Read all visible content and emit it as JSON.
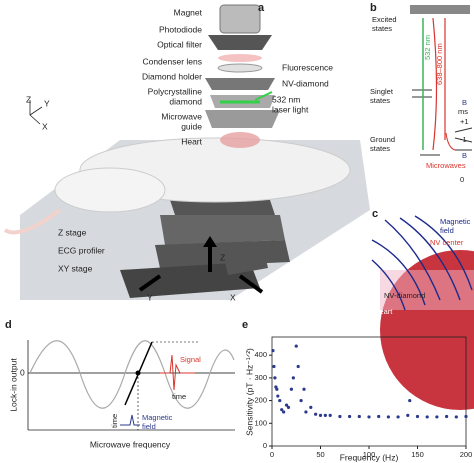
{
  "figure": {
    "panel_labels": [
      "a",
      "b",
      "c",
      "d",
      "e"
    ],
    "a": {
      "left_labels": [
        "Magnet",
        "Photodiode",
        "Optical filter",
        "Condenser lens",
        "Diamond holder",
        "Polycrystalline",
        "diamond",
        "Microwave",
        "guide",
        "Heart"
      ],
      "right_labels": [
        "Fluorescence",
        "NV-diamond",
        "532 nm",
        "laser light"
      ],
      "stage_labels": [
        "Z stage",
        "ECG profiler",
        "XY stage"
      ],
      "axes": [
        "Z",
        "Y",
        "X"
      ],
      "arrows": [
        "Z",
        "Y",
        "X"
      ]
    },
    "b": {
      "states": [
        "Excited",
        "states",
        "Singlet",
        "states",
        "Ground",
        "states"
      ],
      "excitation": "532 nm",
      "emission": "638–800 nm",
      "spin_label": "ms",
      "spin_levels": [
        "+1",
        "-1",
        "0"
      ],
      "field": [
        "B",
        "B"
      ],
      "microwaves": "Microwaves"
    },
    "c": {
      "labels": [
        "Magnetic",
        "field",
        "NV center",
        "NV-diamond",
        "Heart"
      ]
    },
    "d": {
      "y_label": "Lock-in output",
      "x_label": "Microwave frequency",
      "zero": "0",
      "signal": "Signal",
      "time_1": "time",
      "field": [
        "Magnetic",
        "field"
      ],
      "time_2": "time"
    }
  },
  "chart_data": {
    "type": "scatter",
    "x_label": "Frequency (Hz)",
    "y_label": "Sensitivity (pT · Hz⁻¹ᐟ²)",
    "x": [
      1,
      2,
      3,
      4,
      5,
      6,
      8,
      10,
      12,
      15,
      17,
      20,
      22,
      25,
      27,
      30,
      33,
      35,
      40,
      45,
      50,
      55,
      60,
      70,
      80,
      90,
      100,
      110,
      120,
      130,
      140,
      142,
      150,
      160,
      170,
      180,
      190,
      200
    ],
    "series": [
      {
        "color": "#2b3a8c",
        "values": [
          420,
          350,
          300,
          260,
          250,
          220,
          200,
          160,
          150,
          180,
          170,
          250,
          300,
          440,
          350,
          200,
          250,
          150,
          170,
          140,
          135,
          135,
          135,
          130,
          130,
          130,
          128,
          130,
          128,
          128,
          135,
          200,
          130,
          128,
          128,
          130,
          128,
          130
        ]
      }
    ],
    "xlim": [
      0,
      200
    ],
    "ylim": [
      0,
      480
    ],
    "xticks": [
      0,
      50,
      100,
      150,
      200
    ],
    "yticks": [
      0,
      100,
      200,
      300,
      400
    ]
  }
}
